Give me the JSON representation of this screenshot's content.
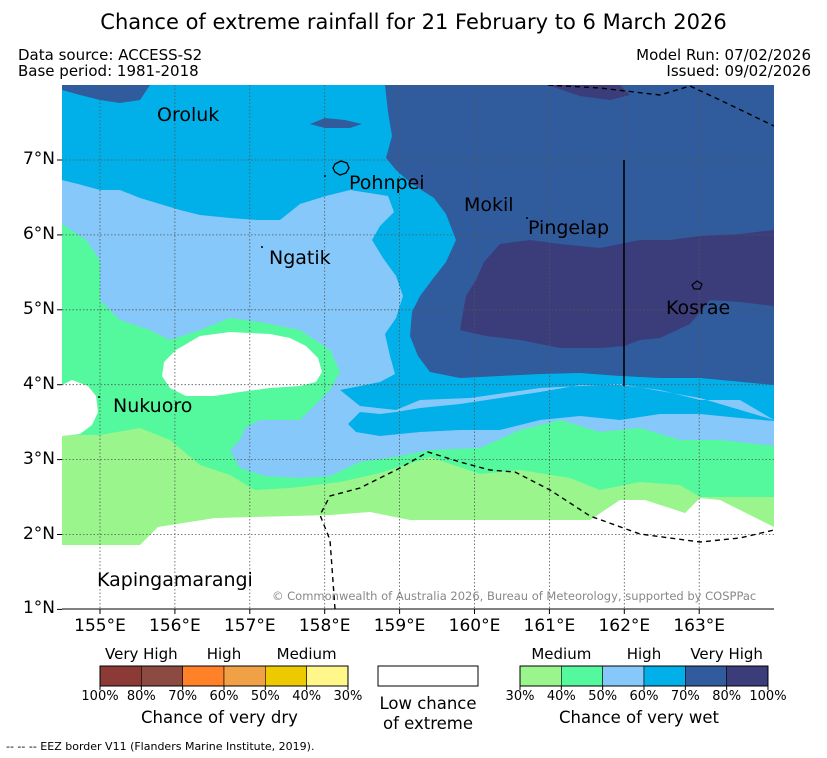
{
  "title": "Chance of extreme rainfall for 21 February to 6 March 2026",
  "header": {
    "data_source": "Data source: ACCESS-S2",
    "base_period": "Base period: 1981-2018",
    "model_run": "Model Run: 07/02/2026",
    "issued": "Issued: 09/02/2026"
  },
  "map": {
    "lat_labels": [
      "7°N",
      "6°N",
      "5°N",
      "4°N",
      "3°N",
      "2°N",
      "1°N"
    ],
    "lon_labels": [
      "155°E",
      "156°E",
      "157°E",
      "158°E",
      "159°E",
      "160°E",
      "161°E",
      "162°E",
      "163°E"
    ],
    "places": {
      "oroluk": "Oroluk",
      "pohnpei": "Pohnpei",
      "mokil": "Mokil",
      "pingelap": "Pingelap",
      "ngatik": "Ngatik",
      "kosrae": "Kosrae",
      "nukuoro": "Nukuoro",
      "kapingamarangi": "Kapingamarangi"
    },
    "copyright": "© Commonwealth of Australia 2026, Bureau of Meteorology, supported by COSPPac"
  },
  "colors": {
    "wet_30": "#99f58c",
    "wet_40": "#55f99d",
    "wet_50": "#86c8fa",
    "wet_60": "#02b0e9",
    "wet_70": "#305b9d",
    "wet_80": "#3b3c7a",
    "dry_100": "#8b3a35",
    "dry_80": "#8c4b40",
    "dry_70": "#ff8128",
    "dry_60": "#f0a045",
    "dry_50": "#edca00",
    "dry_40": "#fff78a"
  },
  "legend": {
    "dry": {
      "categories": [
        "Very High",
        "High",
        "Medium"
      ],
      "ticks": [
        "100%",
        "80%",
        "70%",
        "60%",
        "50%",
        "40%",
        "30%"
      ],
      "title": "Chance of very dry"
    },
    "low": {
      "line1": "Low chance",
      "line2": "of extreme"
    },
    "wet": {
      "categories": [
        "Medium",
        "High",
        "Very High"
      ],
      "ticks": [
        "30%",
        "40%",
        "50%",
        "60%",
        "70%",
        "80%",
        "100%"
      ],
      "title": "Chance of very wet"
    }
  },
  "eez_note": "--  --  -- EEZ border V11 (Flanders Marine Institute, 2019)."
}
